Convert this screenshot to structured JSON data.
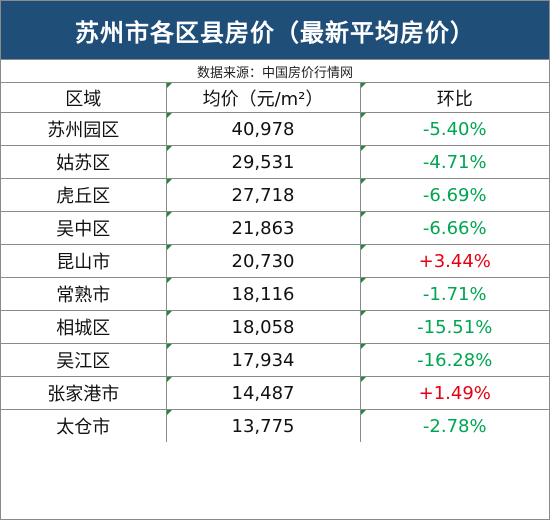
{
  "title": "苏州市各区县房价（最新平均房价）",
  "source": "数据来源：中国房价行情网",
  "columns": [
    "区域",
    "均价（元/m²）",
    "环比"
  ],
  "rows": [
    {
      "district": "苏州园区",
      "price": "40,978",
      "change": "-5.40%",
      "direction": "down"
    },
    {
      "district": "姑苏区",
      "price": "29,531",
      "change": "-4.71%",
      "direction": "down"
    },
    {
      "district": "虎丘区",
      "price": "27,718",
      "change": "-6.69%",
      "direction": "down"
    },
    {
      "district": "吴中区",
      "price": "21,863",
      "change": "-6.66%",
      "direction": "down"
    },
    {
      "district": "昆山市",
      "price": "20,730",
      "change": "+3.44%",
      "direction": "up"
    },
    {
      "district": "常熟市",
      "price": "18,116",
      "change": "-1.71%",
      "direction": "down"
    },
    {
      "district": "相城区",
      "price": "18,058",
      "change": "-15.51%",
      "direction": "down"
    },
    {
      "district": "吴江区",
      "price": "17,934",
      "change": "-16.28%",
      "direction": "down"
    },
    {
      "district": "张家港市",
      "price": "14,487",
      "change": "+1.49%",
      "direction": "up"
    },
    {
      "district": "太仓市",
      "price": "13,775",
      "change": "-2.78%",
      "direction": "down"
    }
  ],
  "colors": {
    "title_background": "#1f4e79",
    "increase": "#e60012",
    "decrease": "#00a651"
  }
}
